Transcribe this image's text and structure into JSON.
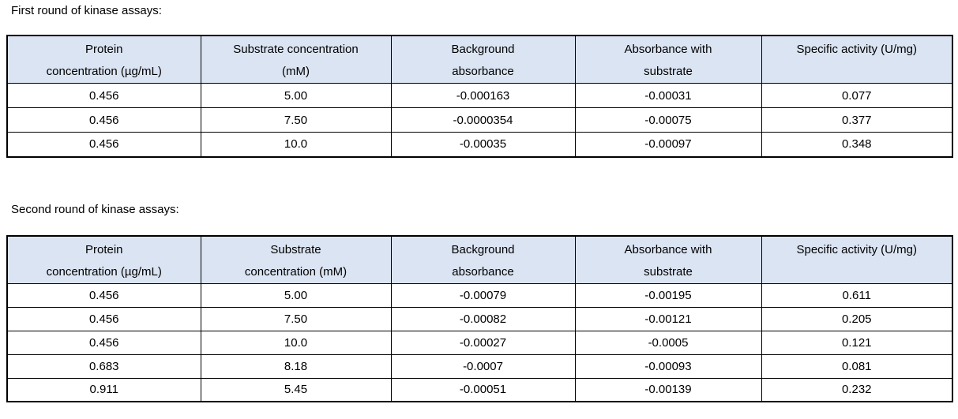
{
  "colors": {
    "header_fill": "#dbe4f2",
    "border": "#000000",
    "text": "#000000",
    "background": "#ffffff"
  },
  "sections": [
    {
      "title": "First round of kinase assays:",
      "table": {
        "headers": [
          {
            "line1": "Protein",
            "line2": "concentration (µg/mL)"
          },
          {
            "line1": "Substrate concentration",
            "line2": "(mM)"
          },
          {
            "line1": "Background",
            "line2": "absorbance"
          },
          {
            "line1": "Absorbance with",
            "line2": "substrate"
          },
          {
            "line1": "Specific activity (U/mg)",
            "line2": ""
          }
        ],
        "rows": [
          [
            "0.456",
            "5.00",
            "-0.000163",
            "-0.00031",
            "0.077"
          ],
          [
            "0.456",
            "7.50",
            "-0.0000354",
            "-0.00075",
            "0.377"
          ],
          [
            "0.456",
            "10.0",
            "-0.00035",
            "-0.00097",
            "0.348"
          ]
        ]
      }
    },
    {
      "title": "Second round of kinase assays:",
      "table": {
        "headers": [
          {
            "line1": "Protein",
            "line2": "concentration (µg/mL)"
          },
          {
            "line1": "Substrate",
            "line2": "concentration (mM)"
          },
          {
            "line1": "Background",
            "line2": "absorbance"
          },
          {
            "line1": "Absorbance with",
            "line2": "substrate"
          },
          {
            "line1": "Specific activity (U/mg)",
            "line2": ""
          }
        ],
        "rows": [
          [
            "0.456",
            "5.00",
            "-0.00079",
            "-0.00195",
            "0.611"
          ],
          [
            "0.456",
            "7.50",
            "-0.00082",
            "-0.00121",
            "0.205"
          ],
          [
            "0.456",
            "10.0",
            "-0.00027",
            "-0.0005",
            "0.121"
          ],
          [
            "0.683",
            "8.18",
            "-0.0007",
            "-0.00093",
            "0.081"
          ],
          [
            "0.911",
            "5.45",
            "-0.00051",
            "-0.00139",
            "0.232"
          ]
        ]
      }
    }
  ]
}
